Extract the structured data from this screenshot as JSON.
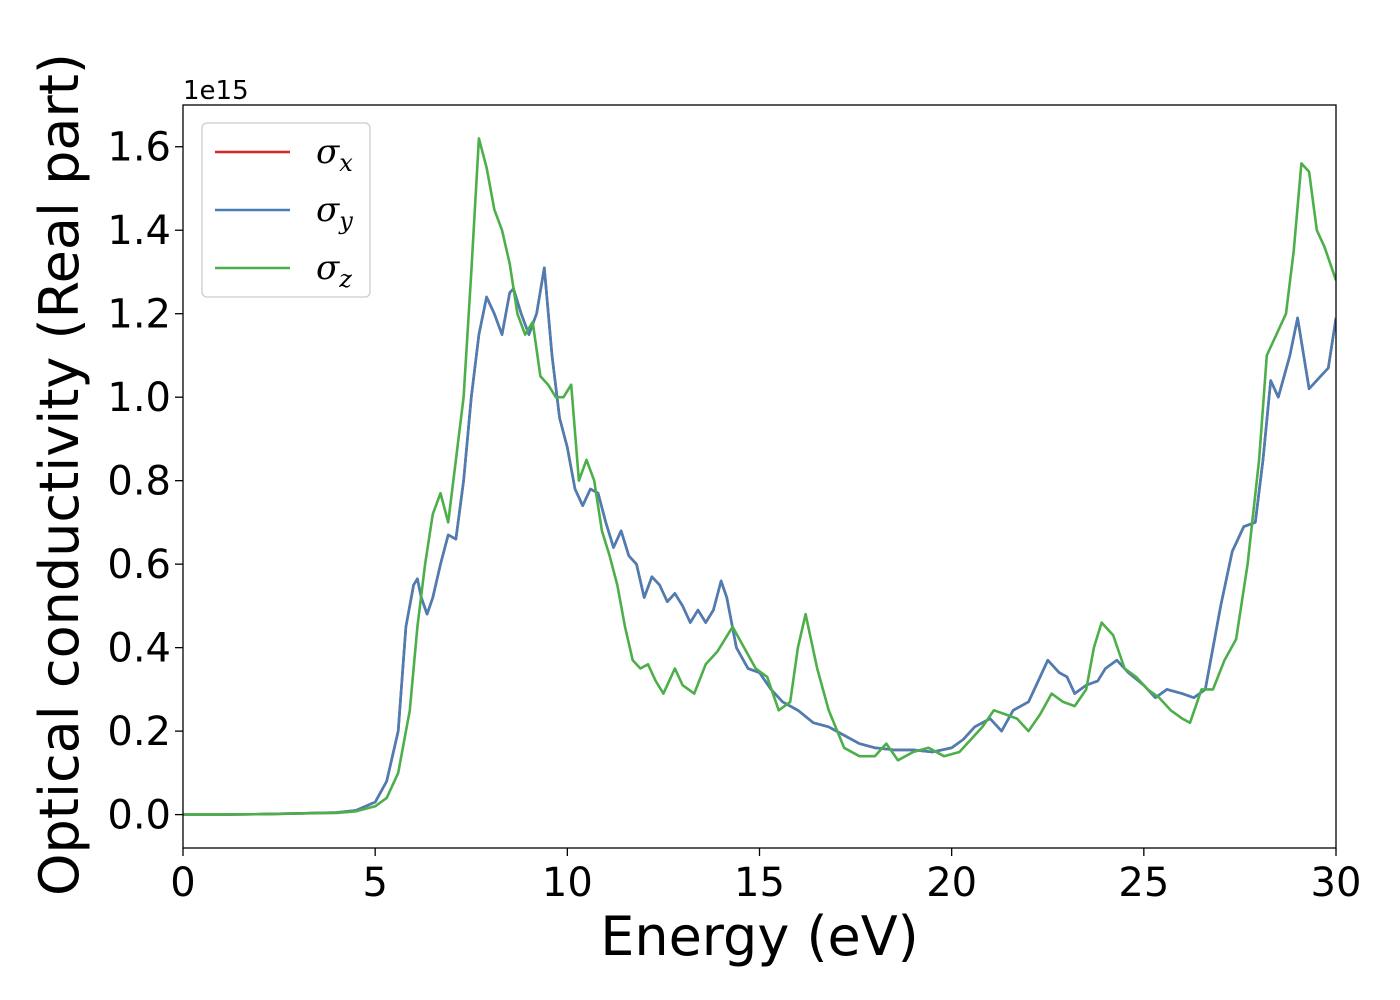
{
  "chart_data": {
    "type": "line",
    "xlabel": "Energy (eV)",
    "ylabel": "Optical conductivity (Real part)",
    "y_offset_text": "1e15",
    "xlim": [
      0,
      30
    ],
    "ylim": [
      -0.08,
      1.7
    ],
    "x_ticks": [
      0,
      5,
      10,
      15,
      20,
      25,
      30
    ],
    "x_tick_labels": [
      "0",
      "5",
      "10",
      "15",
      "20",
      "25",
      "30"
    ],
    "y_ticks": [
      0.0,
      0.2,
      0.4,
      0.6,
      0.8,
      1.0,
      1.2,
      1.4,
      1.6
    ],
    "y_tick_labels": [
      "0.0",
      "0.2",
      "0.4",
      "0.6",
      "0.8",
      "1.0",
      "1.2",
      "1.4",
      "1.6"
    ],
    "grid": false,
    "legend_position": "top-left",
    "series": [
      {
        "name": "σx",
        "symbol": "σ",
        "sub": "x",
        "color": "#d62728",
        "x": [
          0,
          1,
          2,
          3,
          4,
          4.5,
          5,
          5.3,
          5.6,
          5.8,
          6.0,
          6.1,
          6.2,
          6.35,
          6.5,
          6.7,
          6.9,
          7.1,
          7.3,
          7.5,
          7.7,
          7.9,
          8.1,
          8.3,
          8.5,
          8.6,
          8.8,
          9.0,
          9.2,
          9.4,
          9.6,
          9.8,
          10.0,
          10.2,
          10.4,
          10.6,
          10.8,
          11.0,
          11.2,
          11.4,
          11.6,
          11.8,
          12.0,
          12.2,
          12.4,
          12.6,
          12.8,
          13.0,
          13.2,
          13.4,
          13.6,
          13.8,
          14.0,
          14.15,
          14.4,
          14.7,
          15.0,
          15.3,
          15.6,
          16.0,
          16.4,
          16.8,
          17.2,
          17.6,
          18.0,
          18.5,
          19.0,
          19.5,
          20.0,
          20.3,
          20.6,
          21.0,
          21.3,
          21.6,
          22.0,
          22.3,
          22.5,
          22.8,
          23.0,
          23.2,
          23.5,
          23.8,
          24.0,
          24.3,
          24.6,
          25.0,
          25.3,
          25.6,
          26.0,
          26.3,
          26.6,
          27.0,
          27.3,
          27.6,
          27.9,
          28.1,
          28.3,
          28.5,
          28.8,
          29.0,
          29.3,
          29.6,
          29.8,
          30.0
        ],
        "y": [
          0,
          0,
          0.001,
          0.003,
          0.005,
          0.01,
          0.03,
          0.08,
          0.2,
          0.45,
          0.55,
          0.565,
          0.52,
          0.48,
          0.52,
          0.6,
          0.67,
          0.66,
          0.8,
          1.0,
          1.15,
          1.24,
          1.2,
          1.15,
          1.25,
          1.26,
          1.2,
          1.15,
          1.2,
          1.31,
          1.1,
          0.95,
          0.88,
          0.78,
          0.74,
          0.78,
          0.77,
          0.7,
          0.64,
          0.68,
          0.62,
          0.6,
          0.52,
          0.57,
          0.55,
          0.51,
          0.53,
          0.5,
          0.46,
          0.49,
          0.46,
          0.49,
          0.56,
          0.52,
          0.4,
          0.35,
          0.34,
          0.3,
          0.27,
          0.25,
          0.22,
          0.21,
          0.19,
          0.17,
          0.16,
          0.155,
          0.155,
          0.15,
          0.16,
          0.18,
          0.21,
          0.23,
          0.2,
          0.25,
          0.27,
          0.33,
          0.37,
          0.34,
          0.33,
          0.29,
          0.31,
          0.32,
          0.35,
          0.37,
          0.34,
          0.31,
          0.28,
          0.3,
          0.29,
          0.28,
          0.3,
          0.5,
          0.63,
          0.69,
          0.7,
          0.85,
          1.04,
          1.0,
          1.1,
          1.19,
          1.02,
          1.05,
          1.07,
          1.19
        ]
      },
      {
        "name": "σy",
        "symbol": "σ",
        "sub": "y",
        "color": "#4a7eb5",
        "x": [
          0,
          1,
          2,
          3,
          4,
          4.5,
          5,
          5.3,
          5.6,
          5.8,
          6.0,
          6.1,
          6.2,
          6.35,
          6.5,
          6.7,
          6.9,
          7.1,
          7.3,
          7.5,
          7.7,
          7.9,
          8.1,
          8.3,
          8.5,
          8.6,
          8.8,
          9.0,
          9.2,
          9.4,
          9.6,
          9.8,
          10.0,
          10.2,
          10.4,
          10.6,
          10.8,
          11.0,
          11.2,
          11.4,
          11.6,
          11.8,
          12.0,
          12.2,
          12.4,
          12.6,
          12.8,
          13.0,
          13.2,
          13.4,
          13.6,
          13.8,
          14.0,
          14.15,
          14.4,
          14.7,
          15.0,
          15.3,
          15.6,
          16.0,
          16.4,
          16.8,
          17.2,
          17.6,
          18.0,
          18.5,
          19.0,
          19.5,
          20.0,
          20.3,
          20.6,
          21.0,
          21.3,
          21.6,
          22.0,
          22.3,
          22.5,
          22.8,
          23.0,
          23.2,
          23.5,
          23.8,
          24.0,
          24.3,
          24.6,
          25.0,
          25.3,
          25.6,
          26.0,
          26.3,
          26.6,
          27.0,
          27.3,
          27.6,
          27.9,
          28.1,
          28.3,
          28.5,
          28.8,
          29.0,
          29.3,
          29.6,
          29.8,
          30.0
        ],
        "y": [
          0,
          0,
          0.001,
          0.003,
          0.005,
          0.01,
          0.03,
          0.08,
          0.2,
          0.45,
          0.55,
          0.565,
          0.52,
          0.48,
          0.52,
          0.6,
          0.67,
          0.66,
          0.8,
          1.0,
          1.15,
          1.24,
          1.2,
          1.15,
          1.25,
          1.26,
          1.2,
          1.15,
          1.2,
          1.31,
          1.1,
          0.95,
          0.88,
          0.78,
          0.74,
          0.78,
          0.77,
          0.7,
          0.64,
          0.68,
          0.62,
          0.6,
          0.52,
          0.57,
          0.55,
          0.51,
          0.53,
          0.5,
          0.46,
          0.49,
          0.46,
          0.49,
          0.56,
          0.52,
          0.4,
          0.35,
          0.34,
          0.3,
          0.27,
          0.25,
          0.22,
          0.21,
          0.19,
          0.17,
          0.16,
          0.155,
          0.155,
          0.15,
          0.16,
          0.18,
          0.21,
          0.23,
          0.2,
          0.25,
          0.27,
          0.33,
          0.37,
          0.34,
          0.33,
          0.29,
          0.31,
          0.32,
          0.35,
          0.37,
          0.34,
          0.31,
          0.28,
          0.3,
          0.29,
          0.28,
          0.3,
          0.5,
          0.63,
          0.69,
          0.7,
          0.85,
          1.04,
          1.0,
          1.1,
          1.19,
          1.02,
          1.05,
          1.07,
          1.19
        ]
      },
      {
        "name": "σz",
        "symbol": "σ",
        "sub": "z",
        "color": "#4daf4a",
        "x": [
          0,
          1,
          2,
          3,
          4,
          4.5,
          5,
          5.3,
          5.6,
          5.9,
          6.1,
          6.3,
          6.5,
          6.7,
          6.9,
          7.1,
          7.3,
          7.5,
          7.7,
          7.9,
          8.1,
          8.3,
          8.5,
          8.7,
          8.9,
          9.1,
          9.3,
          9.5,
          9.7,
          9.9,
          10.1,
          10.3,
          10.5,
          10.7,
          10.9,
          11.1,
          11.3,
          11.5,
          11.7,
          11.9,
          12.1,
          12.3,
          12.5,
          12.8,
          13.0,
          13.3,
          13.6,
          13.9,
          14.1,
          14.3,
          14.6,
          14.9,
          15.2,
          15.5,
          15.8,
          16.0,
          16.2,
          16.5,
          16.8,
          17.2,
          17.6,
          18.0,
          18.3,
          18.6,
          19.0,
          19.4,
          19.8,
          20.2,
          20.5,
          20.8,
          21.1,
          21.4,
          21.7,
          22.0,
          22.3,
          22.6,
          22.9,
          23.2,
          23.5,
          23.7,
          23.9,
          24.2,
          24.5,
          24.8,
          25.1,
          25.4,
          25.7,
          26.0,
          26.2,
          26.5,
          26.8,
          27.1,
          27.4,
          27.7,
          28.0,
          28.2,
          28.5,
          28.7,
          28.9,
          29.1,
          29.3,
          29.5,
          29.7,
          30.0
        ],
        "y": [
          0,
          0,
          0.001,
          0.003,
          0.004,
          0.008,
          0.02,
          0.04,
          0.1,
          0.25,
          0.45,
          0.6,
          0.72,
          0.77,
          0.7,
          0.85,
          1.0,
          1.3,
          1.62,
          1.55,
          1.45,
          1.4,
          1.32,
          1.2,
          1.15,
          1.18,
          1.05,
          1.03,
          1.0,
          1.0,
          1.03,
          0.8,
          0.85,
          0.8,
          0.68,
          0.62,
          0.55,
          0.45,
          0.37,
          0.35,
          0.36,
          0.32,
          0.29,
          0.35,
          0.31,
          0.29,
          0.36,
          0.39,
          0.42,
          0.45,
          0.4,
          0.35,
          0.33,
          0.25,
          0.27,
          0.4,
          0.48,
          0.35,
          0.25,
          0.16,
          0.14,
          0.14,
          0.17,
          0.13,
          0.15,
          0.16,
          0.14,
          0.15,
          0.18,
          0.21,
          0.25,
          0.24,
          0.23,
          0.2,
          0.24,
          0.29,
          0.27,
          0.26,
          0.3,
          0.4,
          0.46,
          0.43,
          0.35,
          0.33,
          0.3,
          0.28,
          0.25,
          0.23,
          0.22,
          0.3,
          0.3,
          0.37,
          0.42,
          0.6,
          0.85,
          1.1,
          1.16,
          1.2,
          1.35,
          1.56,
          1.54,
          1.4,
          1.36,
          1.28
        ]
      }
    ]
  }
}
